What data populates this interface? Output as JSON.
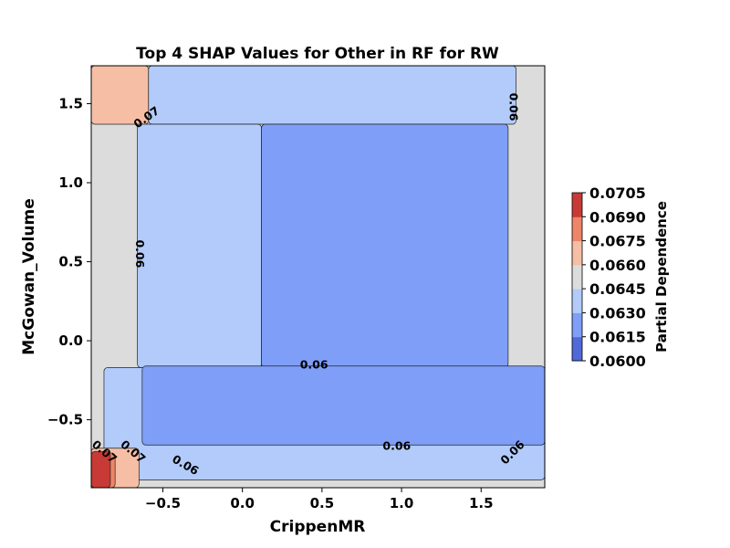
{
  "chart_data": {
    "type": "contour",
    "title": "Top 4 SHAP Values for Other in RF for RW",
    "xlabel": "CrippenMR",
    "ylabel": "McGowan_Volume",
    "xlim": [
      -0.95,
      1.9
    ],
    "ylim": [
      -0.93,
      1.74
    ],
    "xticks": [
      -0.5,
      0.0,
      0.5,
      1.0,
      1.5
    ],
    "xtick_labels": [
      "−0.5",
      "0.0",
      "0.5",
      "1.0",
      "1.5"
    ],
    "yticks": [
      -0.5,
      0.0,
      0.5,
      1.0,
      1.5
    ],
    "ytick_labels": [
      "−0.5",
      "0.0",
      "0.5",
      "1.0",
      "1.5"
    ],
    "grid": false,
    "colorbar": {
      "label": "Partial Dependence",
      "placement": "right",
      "levels": [
        0.06,
        0.0615,
        0.063,
        0.0645,
        0.066,
        0.0675,
        0.069,
        0.0705
      ],
      "tick_labels": [
        "0.0600",
        "0.0615",
        "0.0630",
        "0.0645",
        "0.0660",
        "0.0675",
        "0.0690",
        "0.0705"
      ],
      "colors": [
        "#5069d9",
        "#7f9ef8",
        "#b2cbfb",
        "#dcdcdc",
        "#f6bfa5",
        "#ee8568",
        "#c83a36"
      ]
    },
    "regions": [
      {
        "name": "base-level",
        "level": 3,
        "rect": [
          -0.95,
          1.9,
          -0.93,
          1.74
        ]
      },
      {
        "name": "upper-left-high",
        "level": 4,
        "rect": [
          -0.95,
          -0.59,
          1.37,
          1.74
        ]
      },
      {
        "name": "upper-band",
        "level": 2,
        "rect": [
          -0.59,
          1.72,
          1.37,
          1.74
        ]
      },
      {
        "name": "left-band",
        "level": 2,
        "rect": [
          -0.66,
          0.12,
          -0.17,
          1.37
        ]
      },
      {
        "name": "right-band",
        "level": 2,
        "rect": [
          0.12,
          1.72,
          1.37,
          1.37
        ]
      },
      {
        "name": "lower-band",
        "level": 2,
        "rect": [
          -0.87,
          1.9,
          -0.88,
          -0.17
        ]
      },
      {
        "name": "center-block",
        "level": 1,
        "rect": [
          0.12,
          1.67,
          -0.17,
          1.37
        ]
      },
      {
        "name": "lower-middle",
        "level": 1,
        "rect": [
          -0.63,
          1.9,
          -0.66,
          -0.16
        ]
      },
      {
        "name": "bottom-left-warm",
        "level": 4,
        "rect": [
          -0.95,
          -0.65,
          -0.93,
          -0.68
        ]
      },
      {
        "name": "bottom-left-warmer",
        "level": 5,
        "rect": [
          -0.95,
          -0.8,
          -0.93,
          -0.71
        ]
      },
      {
        "name": "bottom-left-hot",
        "level": 6,
        "rect": [
          -0.95,
          -0.83,
          -0.93,
          -0.7
        ]
      }
    ],
    "contour_labels": [
      {
        "text": "0.07",
        "x": -0.6,
        "y": 1.41,
        "angle": -35
      },
      {
        "text": "0.06",
        "x": 1.7,
        "y": 1.48,
        "angle": 90
      },
      {
        "text": "0.06",
        "x": -0.65,
        "y": 0.55,
        "angle": 90
      },
      {
        "text": "0.06",
        "x": 0.45,
        "y": -0.155,
        "angle": 0
      },
      {
        "text": "0.06",
        "x": 0.97,
        "y": -0.67,
        "angle": 0
      },
      {
        "text": "0.06",
        "x": 1.7,
        "y": -0.71,
        "angle": -45
      },
      {
        "text": "0.07",
        "x": -0.87,
        "y": -0.705,
        "angle": 40
      },
      {
        "text": "0.07",
        "x": -0.69,
        "y": -0.705,
        "angle": 40
      },
      {
        "text": "0.06",
        "x": -0.36,
        "y": -0.79,
        "angle": 30
      }
    ]
  }
}
